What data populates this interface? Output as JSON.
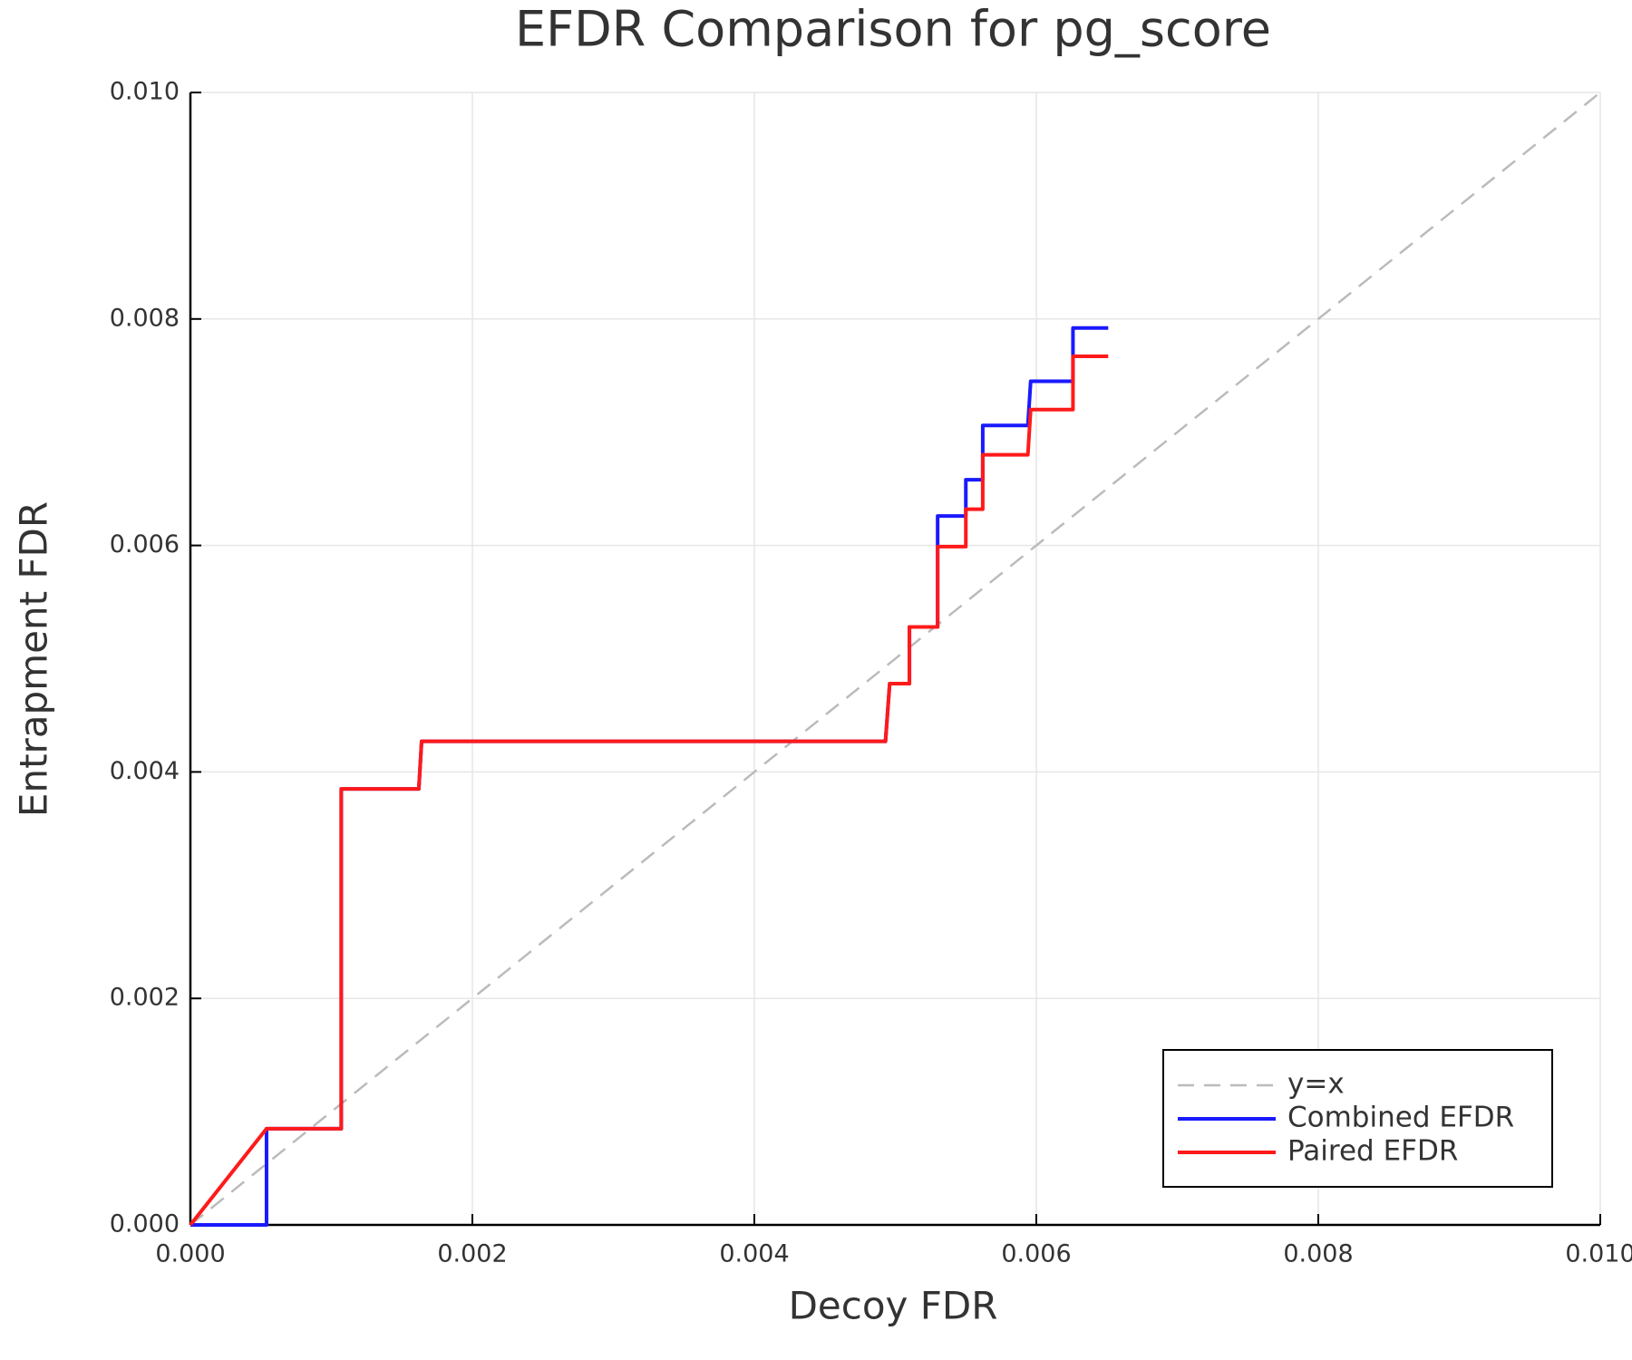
{
  "chart_data": {
    "type": "line",
    "title": "EFDR Comparison for pg_score",
    "xlabel": "Decoy FDR",
    "ylabel": "Entrapment FDR",
    "xlim": [
      0,
      0.01
    ],
    "ylim": [
      0,
      0.01
    ],
    "xticks": [
      {
        "value": 0,
        "label": "0.000"
      },
      {
        "value": 0.002,
        "label": "0.002"
      },
      {
        "value": 0.004,
        "label": "0.004"
      },
      {
        "value": 0.006,
        "label": "0.006"
      },
      {
        "value": 0.008,
        "label": "0.008"
      },
      {
        "value": 0.01,
        "label": "0.010"
      }
    ],
    "yticks": [
      {
        "value": 0,
        "label": "0.000"
      },
      {
        "value": 0.002,
        "label": "0.002"
      },
      {
        "value": 0.004,
        "label": "0.004"
      },
      {
        "value": 0.006,
        "label": "0.006"
      },
      {
        "value": 0.008,
        "label": "0.008"
      },
      {
        "value": 0.01,
        "label": "0.010"
      }
    ],
    "grid": true,
    "legend": "bottom right",
    "series": [
      {
        "name": "y=x",
        "color": "#bbbbbb",
        "dash": true,
        "x": [
          0,
          0.01
        ],
        "values": [
          0,
          0.01
        ]
      },
      {
        "name": "Combined EFDR",
        "color": "#1a1aff",
        "dash": false,
        "x": [
          0,
          0.00054,
          0.00054,
          0.00107,
          0.00107,
          0.00162,
          0.00164,
          0.00493,
          0.00496,
          0.0051,
          0.0051,
          0.0053,
          0.0053,
          0.0055,
          0.0055,
          0.00562,
          0.00562,
          0.00594,
          0.00596,
          0.00626,
          0.00626,
          0.00651
        ],
        "values": [
          0,
          0,
          0.00085,
          0.00085,
          0.00385,
          0.00385,
          0.00427,
          0.00427,
          0.00478,
          0.00478,
          0.00528,
          0.00528,
          0.00626,
          0.00626,
          0.00658,
          0.00658,
          0.00706,
          0.00706,
          0.00745,
          0.00745,
          0.00792,
          0.00792
        ]
      },
      {
        "name": "Paired EFDR",
        "color": "#ff1a1a",
        "dash": false,
        "x": [
          0,
          0.00054,
          0.00107,
          0.00107,
          0.00162,
          0.00164,
          0.00493,
          0.00496,
          0.0051,
          0.0051,
          0.0053,
          0.0053,
          0.0055,
          0.0055,
          0.00562,
          0.00562,
          0.00594,
          0.00596,
          0.00626,
          0.00626,
          0.00651
        ],
        "values": [
          0,
          0.00085,
          0.00085,
          0.00385,
          0.00385,
          0.00427,
          0.00427,
          0.00478,
          0.00478,
          0.00528,
          0.00528,
          0.00599,
          0.00599,
          0.00632,
          0.00632,
          0.0068,
          0.0068,
          0.0072,
          0.0072,
          0.00767,
          0.00767
        ]
      }
    ]
  }
}
